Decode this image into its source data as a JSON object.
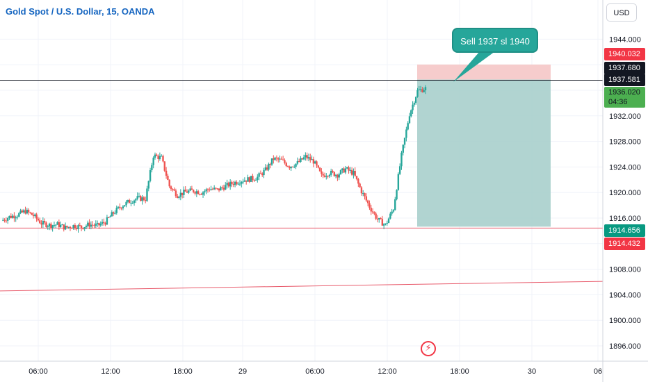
{
  "header": {
    "title": "Gold Spot / U.S. Dollar, 15, OANDA",
    "currency": "USD"
  },
  "annotation": {
    "text": "Sell 1937 sl 1940"
  },
  "colors": {
    "up": "#26a69a",
    "down": "#ef5350",
    "stop_zone": "#f5c7c7",
    "target_zone": "#a8cfcc",
    "support_line": "#e85a6b"
  },
  "price_tags": [
    {
      "label": "1940.032",
      "bg": "#f23645",
      "fg": "#ffffff"
    },
    {
      "label": "1937.680",
      "bg": "#131722",
      "fg": "#ffffff"
    },
    {
      "label": "1937.581",
      "bg": "#131722",
      "fg": "#ffffff"
    },
    {
      "label": "1936.020",
      "sub": "04:36",
      "bg": "#4caf50",
      "fg": "#131722"
    },
    {
      "label": "1914.656",
      "bg": "#089981",
      "fg": "#ffffff"
    },
    {
      "label": "1914.432",
      "bg": "#f23645",
      "fg": "#ffffff"
    }
  ],
  "chart_data": {
    "type": "candlestick",
    "title": "Gold Spot / U.S. Dollar, 15, OANDA",
    "xlabel": "",
    "ylabel": "",
    "ylim": [
      1894.0,
      1946.0
    ],
    "y_ticks": [
      "1944.000",
      "1940.000",
      "1936.000",
      "1932.000",
      "1928.000",
      "1924.000",
      "1920.000",
      "1916.000",
      "1912.000",
      "1908.000",
      "1904.000",
      "1900.000",
      "1896.000"
    ],
    "x_ticks": [
      "06:00",
      "12:00",
      "18:00",
      "29",
      "06:00",
      "12:00",
      "18:00",
      "30",
      "06"
    ],
    "grid": true,
    "close_path": [
      1915.6,
      1916.2,
      1916.5,
      1917.1,
      1916.4,
      1915.2,
      1914.9,
      1915.0,
      1914.5,
      1914.8,
      1914.6,
      1915.0,
      1914.8,
      1915.4,
      1916.8,
      1917.9,
      1918.6,
      1919.1,
      1919.0,
      1925.8,
      1925.4,
      1921.0,
      1919.6,
      1920.1,
      1920.3,
      1920.0,
      1920.6,
      1920.4,
      1921.0,
      1921.5,
      1921.9,
      1922.1,
      1922.4,
      1923.5,
      1925.3,
      1925.0,
      1924.1,
      1924.6,
      1925.6,
      1924.9,
      1922.6,
      1923.1,
      1922.8,
      1923.7,
      1923.0,
      1920.2,
      1917.8,
      1915.8,
      1914.9,
      1917.5,
      1925.8,
      1932.3,
      1935.9,
      1936.3
    ],
    "position": {
      "entry": 1937.68,
      "stop_loss": 1940.032,
      "target": 1914.656
    },
    "horizontal_lines": [
      1937.581,
      1914.432
    ],
    "trend_line": {
      "from": 1904.6,
      "to": 1906.1
    }
  }
}
